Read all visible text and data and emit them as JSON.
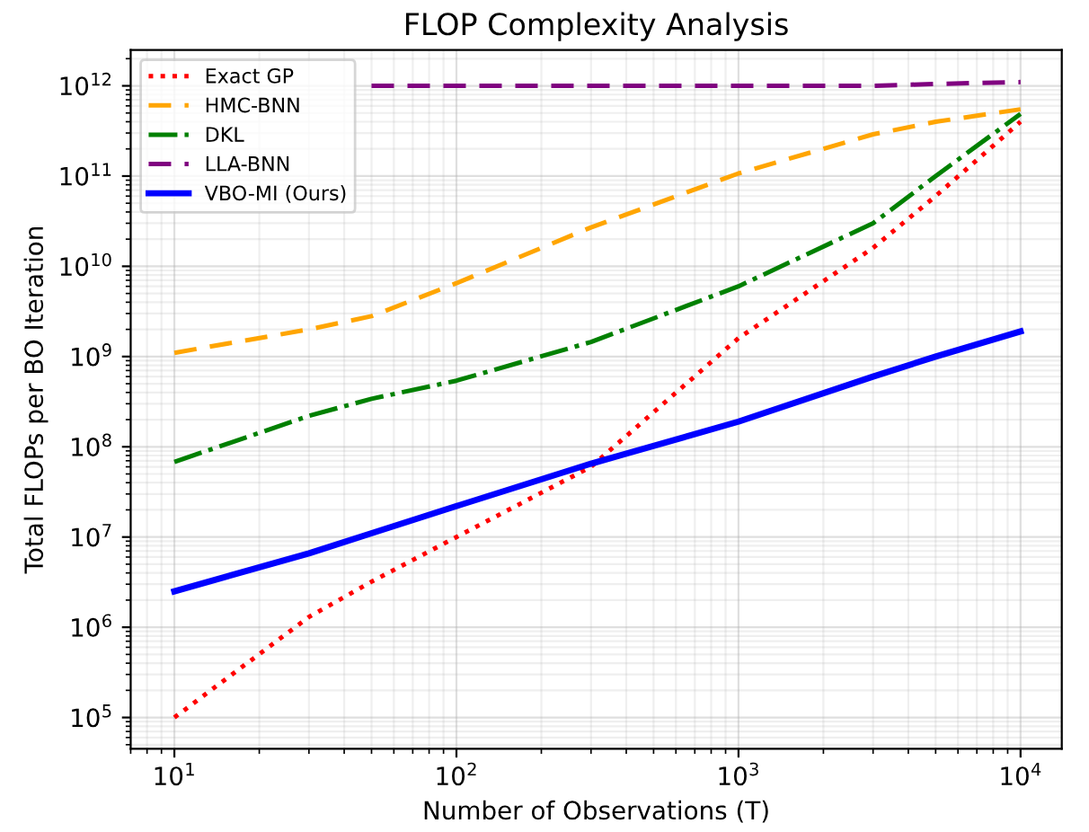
{
  "chart_data": {
    "type": "line",
    "title": "FLOP Complexity Analysis",
    "xlabel": "Number of Observations (T)",
    "ylabel": "Total FLOPs per BO Iteration",
    "log": "xy",
    "grid": true,
    "legend": "top left",
    "xlim": [
      7,
      14000
    ],
    "ylim": [
      45000,
      2500000000000
    ],
    "xticks": [
      {
        "value": 10,
        "label": "10$^{1}$"
      },
      {
        "value": 100,
        "label": "10$^{2}$"
      },
      {
        "value": 1000,
        "label": "10$^{3}$"
      },
      {
        "value": 10000,
        "label": "10$^{4}$"
      }
    ],
    "yticks": [
      {
        "value": 100000,
        "label": "10$^{5}$"
      },
      {
        "value": 1000000,
        "label": "10$^{6}$"
      },
      {
        "value": 10000000,
        "label": "10$^{7}$"
      },
      {
        "value": 100000000,
        "label": "10$^{8}$"
      },
      {
        "value": 1000000000,
        "label": "10$^{9}$"
      },
      {
        "value": 10000000000,
        "label": "10$^{10}$"
      },
      {
        "value": 100000000000,
        "label": "10$^{11}$"
      },
      {
        "value": 1000000000000,
        "label": "10$^{12}$"
      }
    ],
    "x": [
      10,
      30,
      50,
      100,
      300,
      1000,
      3000,
      5000,
      10000
    ],
    "series": [
      {
        "name": "Exact GP",
        "color": "#ff0000",
        "line_style": "dotted",
        "values": [
          100000,
          1300000,
          3200000,
          10000000,
          60000000,
          1600000000,
          16000000000,
          60000000000,
          400000000000
        ]
      },
      {
        "name": "HMC-BNN",
        "color": "#ffa500",
        "line_style": "dashed",
        "values": [
          1100000000,
          2000000000,
          2800000000,
          6500000000,
          27000000000,
          107000000000,
          290000000000,
          400000000000,
          550000000000
        ]
      },
      {
        "name": "DKL",
        "color": "#008000",
        "line_style": "dashdot",
        "values": [
          68000000,
          220000000,
          340000000,
          540000000,
          1450000000,
          6000000000,
          30000000000,
          100000000000,
          490000000000
        ]
      },
      {
        "name": "LLA-BNN",
        "color": "#800080",
        "line_style": "dashed",
        "values": [
          null,
          null,
          1000000000000,
          1000000000000,
          1000000000000,
          1000000000000,
          1000000000000,
          1050000000000,
          1100000000000
        ]
      },
      {
        "name": "VBO-MI (Ours)",
        "color": "#0000ff",
        "line_style": "solid",
        "values": [
          2500000,
          6600000,
          11000000,
          22000000,
          65000000,
          190000000,
          600000000,
          1000000000,
          1900000000
        ]
      }
    ]
  }
}
